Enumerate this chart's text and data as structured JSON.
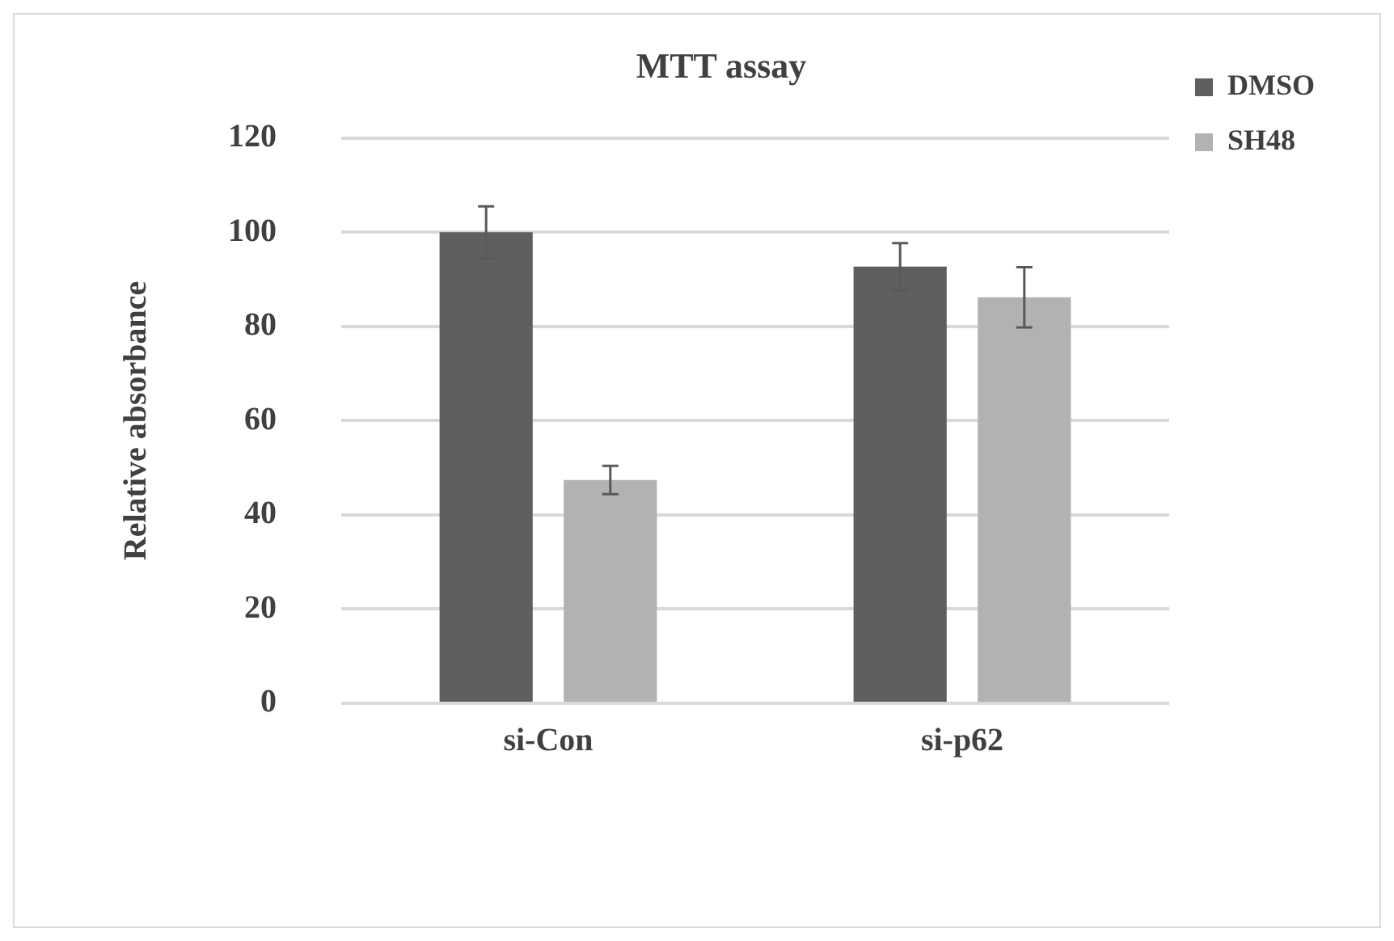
{
  "chart_data": {
    "type": "bar",
    "title": "MTT assay",
    "ylabel": "Relative absorbance",
    "categories": [
      "si-Con",
      "si-p62"
    ],
    "series": [
      {
        "name": "DMSO",
        "color": "#5f5f5f",
        "values": [
          100,
          92.7
        ],
        "errors": [
          5.5,
          5
        ]
      },
      {
        "name": "SH48",
        "color": "#b2b2b2",
        "values": [
          47.4,
          86.2
        ],
        "errors": [
          3,
          6.4
        ]
      }
    ],
    "ylim": [
      0,
      120
    ],
    "yticks": [
      0,
      20,
      40,
      60,
      80,
      100,
      120
    ],
    "grid": "y",
    "legend": "right"
  }
}
